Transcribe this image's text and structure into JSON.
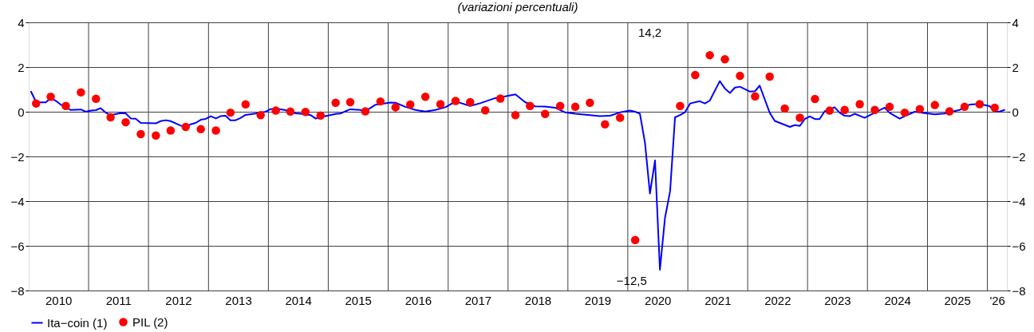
{
  "chart_data": {
    "type": "line",
    "title": "(variazioni percentuali)",
    "xlim": [
      "2010-01-01",
      "2026-04-30"
    ],
    "xticks": [
      {
        "value": "2010-07-01",
        "label": "2010"
      },
      {
        "value": "2011-07-01",
        "label": "2011"
      },
      {
        "value": "2012-07-01",
        "label": "2012"
      },
      {
        "value": "2013-07-01",
        "label": "2013"
      },
      {
        "value": "2014-07-01",
        "label": "2014"
      },
      {
        "value": "2015-07-01",
        "label": "2015"
      },
      {
        "value": "2016-07-01",
        "label": "2016"
      },
      {
        "value": "2017-07-01",
        "label": "2017"
      },
      {
        "value": "2018-07-01",
        "label": "2018"
      },
      {
        "value": "2019-07-01",
        "label": "2019"
      },
      {
        "value": "2020-07-01",
        "label": "2020"
      },
      {
        "value": "2021-07-01",
        "label": "2021"
      },
      {
        "value": "2022-07-01",
        "label": "2022"
      },
      {
        "value": "2023-07-01",
        "label": "2023"
      },
      {
        "value": "2024-07-01",
        "label": "2024"
      },
      {
        "value": "2025-07-01",
        "label": "2025"
      },
      {
        "value": "2026-03-01",
        "label": "'26"
      },
      {
        "value": "2011-01-01",
        "label": null
      },
      {
        "value": "2012-01-01",
        "label": null
      },
      {
        "value": "2013-01-01",
        "label": null
      },
      {
        "value": "2014-01-01",
        "label": null
      },
      {
        "value": "2015-01-01",
        "label": null
      },
      {
        "value": "2016-01-01",
        "label": null
      },
      {
        "value": "2017-01-01",
        "label": null
      },
      {
        "value": "2018-01-01",
        "label": null
      },
      {
        "value": "2019-01-01",
        "label": null
      },
      {
        "value": "2020-01-01",
        "label": null
      },
      {
        "value": "2021-01-01",
        "label": null
      },
      {
        "value": "2022-01-01",
        "label": null
      },
      {
        "value": "2023-01-01",
        "label": null
      },
      {
        "value": "2024-01-01",
        "label": null
      },
      {
        "value": "2025-01-01",
        "label": null
      },
      {
        "value": "2026-01-01",
        "label": null
      }
    ],
    "ylim": [
      -8,
      4
    ],
    "yticks": [
      -8,
      -6,
      -4,
      -2,
      0,
      2,
      4
    ],
    "y2lim": [
      -8,
      4
    ],
    "y2ticks": [
      -8,
      -6,
      -4,
      -2,
      0,
      2,
      4
    ],
    "grid": true,
    "legend": "bottom left",
    "series": [
      {
        "name": "Ita−coin (1)",
        "type": "line",
        "color": "#0000ff",
        "x": [
          "2010-01-15",
          "2010-02-15",
          "2010-03-15",
          "2010-04-15",
          "2010-05-15",
          "2010-06-15",
          "2010-07-15",
          "2010-08-15",
          "2010-09-15",
          "2010-11-15",
          "2010-12-15",
          "2011-01-15",
          "2011-02-15",
          "2011-03-15",
          "2011-04-15",
          "2011-05-15",
          "2011-07-15",
          "2011-08-15",
          "2011-09-15",
          "2011-10-15",
          "2011-11-15",
          "2012-02-15",
          "2012-03-15",
          "2012-04-15",
          "2012-05-15",
          "2012-07-15",
          "2012-08-15",
          "2012-09-15",
          "2012-10-15",
          "2012-11-15",
          "2012-12-15",
          "2013-01-15",
          "2013-02-15",
          "2013-03-15",
          "2013-04-15",
          "2013-05-15",
          "2013-06-15",
          "2013-07-15",
          "2013-08-15",
          "2013-10-15",
          "2013-12-15",
          "2014-01-15",
          "2014-02-15",
          "2014-04-15",
          "2014-06-15",
          "2014-07-15",
          "2014-09-15",
          "2014-10-15",
          "2014-12-15",
          "2015-02-15",
          "2015-03-15",
          "2015-05-15",
          "2015-07-15",
          "2015-08-15",
          "2015-10-15",
          "2016-01-15",
          "2016-02-15",
          "2016-04-15",
          "2016-06-15",
          "2016-08-15",
          "2016-10-15",
          "2016-12-15",
          "2017-02-15",
          "2017-05-15",
          "2017-07-15",
          "2017-10-15",
          "2017-12-15",
          "2018-02-15",
          "2018-04-15",
          "2018-06-15",
          "2018-08-15",
          "2018-10-15",
          "2018-12-15",
          "2019-02-15",
          "2019-05-15",
          "2019-07-15",
          "2019-09-15",
          "2019-11-15",
          "2020-01-15",
          "2020-02-15",
          "2020-03-15",
          "2020-04-15",
          "2020-05-15",
          "2020-06-15",
          "2020-07-15",
          "2020-08-15",
          "2020-09-15",
          "2020-10-15",
          "2020-11-15",
          "2020-12-15",
          "2021-01-15",
          "2021-03-15",
          "2021-04-15",
          "2021-05-15",
          "2021-07-15",
          "2021-08-15",
          "2021-09-15",
          "2021-10-15",
          "2021-11-15",
          "2022-01-15",
          "2022-02-15",
          "2022-03-15",
          "2022-05-15",
          "2022-06-15",
          "2022-09-15",
          "2022-10-15",
          "2022-11-15",
          "2022-12-15",
          "2023-01-15",
          "2023-02-15",
          "2023-03-15",
          "2023-04-15",
          "2023-06-15",
          "2023-07-15",
          "2023-08-15",
          "2023-09-15",
          "2023-10-15",
          "2023-12-15",
          "2024-02-15",
          "2024-04-15",
          "2024-05-15",
          "2024-07-15",
          "2024-08-15",
          "2024-10-15",
          "2024-12-15",
          "2025-02-15",
          "2025-04-15",
          "2025-07-15",
          "2025-09-15",
          "2025-11-15",
          "2026-01-15",
          "2026-02-15",
          "2026-03-15",
          "2026-04-15"
        ],
        "values": [
          0.9,
          0.43,
          0.42,
          0.42,
          0.61,
          0.49,
          0.32,
          0.2,
          0.08,
          0.1,
          0.0,
          0.05,
          0.07,
          0.16,
          -0.04,
          -0.15,
          -0.06,
          -0.07,
          -0.3,
          -0.31,
          -0.5,
          -0.52,
          -0.42,
          -0.38,
          -0.42,
          -0.62,
          -0.68,
          -0.56,
          -0.5,
          -0.36,
          -0.32,
          -0.2,
          -0.3,
          -0.2,
          -0.18,
          -0.38,
          -0.38,
          -0.28,
          -0.14,
          -0.08,
          0.0,
          0.12,
          0.14,
          0.07,
          -0.07,
          -0.09,
          -0.15,
          -0.3,
          -0.2,
          -0.1,
          -0.08,
          0.11,
          0.08,
          0.02,
          0.31,
          0.41,
          0.4,
          0.22,
          0.08,
          0.01,
          0.08,
          0.2,
          0.46,
          0.26,
          0.38,
          0.61,
          0.69,
          0.78,
          0.43,
          0.24,
          0.23,
          0.18,
          -0.03,
          -0.09,
          -0.15,
          -0.2,
          -0.18,
          -0.03,
          0.05,
          0.0,
          -0.09,
          -1.4,
          -3.66,
          -2.18,
          -7.07,
          -4.74,
          -3.56,
          -0.25,
          -0.15,
          -0.02,
          0.37,
          0.47,
          0.37,
          0.5,
          1.37,
          1.04,
          0.84,
          1.08,
          1.12,
          0.9,
          0.92,
          1.17,
          -0.04,
          -0.41,
          -0.68,
          -0.6,
          -0.63,
          -0.33,
          -0.21,
          -0.33,
          -0.33,
          0.02,
          0.2,
          -0.04,
          -0.18,
          -0.2,
          -0.09,
          -0.27,
          -0.04,
          0.18,
          -0.05,
          -0.31,
          -0.2,
          0.0,
          -0.06,
          -0.12,
          -0.08,
          0.08,
          0.32,
          0.35,
          0.25,
          0.02,
          0.0,
          0.08
        ]
      },
      {
        "name": "PIL (2)",
        "type": "scatter",
        "color": "#ff0000",
        "marker": "circle",
        "x": [
          "2010-02-15",
          "2010-05-15",
          "2010-08-15",
          "2010-11-15",
          "2011-02-15",
          "2011-05-15",
          "2011-08-15",
          "2011-11-15",
          "2012-02-15",
          "2012-05-15",
          "2012-08-15",
          "2012-11-15",
          "2013-02-15",
          "2013-05-15",
          "2013-08-15",
          "2013-11-15",
          "2014-02-15",
          "2014-05-15",
          "2014-08-15",
          "2014-11-15",
          "2015-02-15",
          "2015-05-15",
          "2015-08-15",
          "2015-11-15",
          "2016-02-15",
          "2016-05-15",
          "2016-08-15",
          "2016-11-15",
          "2017-02-15",
          "2017-05-15",
          "2017-08-15",
          "2017-11-15",
          "2018-02-15",
          "2018-05-15",
          "2018-08-15",
          "2018-11-15",
          "2019-02-15",
          "2019-05-15",
          "2019-08-15",
          "2019-11-15",
          "2020-02-15",
          "2020-05-15",
          "2020-08-15",
          "2020-11-15",
          "2021-02-15",
          "2021-05-15",
          "2021-08-15",
          "2021-11-15",
          "2022-02-15",
          "2022-05-15",
          "2022-08-15",
          "2022-11-15",
          "2023-02-15",
          "2023-05-15",
          "2023-08-15",
          "2023-11-15",
          "2024-02-15",
          "2024-05-15",
          "2024-08-15",
          "2024-11-15",
          "2025-02-15",
          "2025-05-15",
          "2025-08-15",
          "2025-11-15",
          "2026-02-15"
        ],
        "values": [
          0.37,
          0.67,
          0.26,
          0.87,
          0.58,
          -0.25,
          -0.47,
          -1.0,
          -1.06,
          -0.84,
          -0.68,
          -0.78,
          -0.84,
          -0.04,
          0.33,
          -0.15,
          0.05,
          0.01,
          -0.01,
          -0.17,
          0.4,
          0.43,
          0.02,
          0.46,
          0.2,
          0.32,
          0.67,
          0.34,
          0.48,
          0.43,
          0.06,
          0.59,
          -0.15,
          0.26,
          -0.1,
          0.26,
          0.22,
          0.4,
          -0.56,
          -0.27,
          -5.74,
          null,
          null,
          0.26,
          1.64,
          2.53,
          2.35,
          1.61,
          0.69,
          1.57,
          0.14,
          -0.27,
          0.57,
          0.05,
          0.08,
          0.34,
          0.08,
          0.22,
          -0.04,
          0.12,
          0.3,
          0.02,
          0.22,
          0.34,
          0.18
        ]
      }
    ],
    "annotations": [
      "14,2",
      "−12,5"
    ]
  }
}
